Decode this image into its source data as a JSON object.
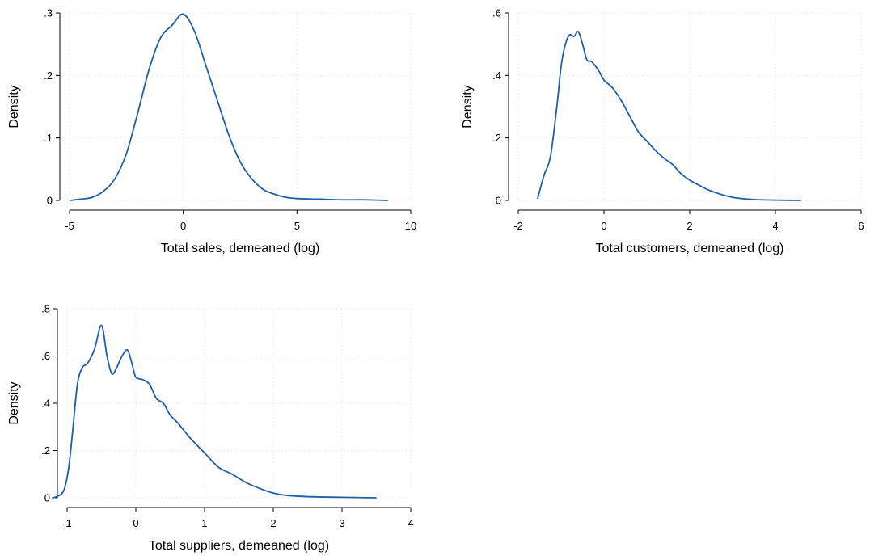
{
  "chart_data": [
    {
      "type": "line",
      "title": "",
      "xlabel": "Total sales, demeaned (log)",
      "ylabel": "Density",
      "xlim": [
        -5,
        10
      ],
      "ylim": [
        0,
        0.3
      ],
      "xticks": [
        -5,
        0,
        5,
        10
      ],
      "xtick_labels": [
        "-5",
        "0",
        "5",
        "10"
      ],
      "yticks": [
        0,
        0.1,
        0.2,
        0.3
      ],
      "ytick_labels": [
        "0",
        ".1",
        ".2",
        ".3"
      ],
      "grid": true,
      "color": "#1f5fa6",
      "series": [
        {
          "x": [
            -5,
            -4.5,
            -4,
            -3.5,
            -3,
            -2.5,
            -2,
            -1.5,
            -1,
            -0.5,
            0,
            0.5,
            1,
            1.5,
            2,
            2.5,
            3,
            3.5,
            4,
            4.5,
            5,
            6,
            7,
            8,
            9
          ],
          "y": [
            0,
            0.002,
            0.005,
            0.015,
            0.035,
            0.075,
            0.14,
            0.21,
            0.26,
            0.28,
            0.298,
            0.27,
            0.215,
            0.16,
            0.105,
            0.062,
            0.035,
            0.018,
            0.01,
            0.005,
            0.003,
            0.002,
            0.001,
            0.001,
            0
          ]
        }
      ]
    },
    {
      "type": "line",
      "title": "",
      "xlabel": "Total customers, demeaned (log)",
      "ylabel": "Density",
      "xlim": [
        -2,
        6
      ],
      "ylim": [
        0,
        0.6
      ],
      "xticks": [
        -2,
        0,
        2,
        4,
        6
      ],
      "xtick_labels": [
        "-2",
        "0",
        "2",
        "4",
        "6"
      ],
      "yticks": [
        0,
        0.2,
        0.4,
        0.6
      ],
      "ytick_labels": [
        "0",
        ".2",
        ".4",
        ".6"
      ],
      "grid": true,
      "color": "#1f5fa6",
      "series": [
        {
          "x": [
            -1.55,
            -1.4,
            -1.25,
            -1.1,
            -1.0,
            -0.9,
            -0.8,
            -0.7,
            -0.6,
            -0.5,
            -0.4,
            -0.3,
            -0.2,
            -0.1,
            0,
            0.2,
            0.4,
            0.6,
            0.8,
            1.0,
            1.2,
            1.4,
            1.6,
            1.8,
            2.0,
            2.2,
            2.5,
            3.0,
            3.5,
            4.0,
            4.6
          ],
          "y": [
            0.005,
            0.08,
            0.14,
            0.3,
            0.43,
            0.5,
            0.53,
            0.525,
            0.54,
            0.5,
            0.45,
            0.445,
            0.43,
            0.41,
            0.385,
            0.36,
            0.32,
            0.27,
            0.22,
            0.19,
            0.16,
            0.135,
            0.115,
            0.085,
            0.065,
            0.05,
            0.03,
            0.01,
            0.003,
            0.001,
            0
          ]
        }
      ]
    },
    {
      "type": "line",
      "title": "",
      "xlabel": "Total suppliers, demeaned (log)",
      "ylabel": "Density",
      "xlim": [
        -1,
        4
      ],
      "ylim": [
        0,
        0.8
      ],
      "xticks": [
        -1,
        0,
        1,
        2,
        3,
        4
      ],
      "xtick_labels": [
        "-1",
        "0",
        "1",
        "2",
        "3",
        "4"
      ],
      "yticks": [
        0,
        0.2,
        0.4,
        0.6,
        0.8
      ],
      "ytick_labels": [
        "0",
        ".2",
        ".4",
        ".6",
        ".8"
      ],
      "grid": true,
      "color": "#1f5fa6",
      "series": [
        {
          "x": [
            -1.22,
            -1.15,
            -1.05,
            -0.98,
            -0.92,
            -0.85,
            -0.78,
            -0.7,
            -0.6,
            -0.5,
            -0.42,
            -0.35,
            -0.28,
            -0.2,
            -0.12,
            -0.05,
            0,
            0.1,
            0.2,
            0.3,
            0.4,
            0.5,
            0.6,
            0.8,
            1.0,
            1.2,
            1.4,
            1.6,
            1.8,
            2.0,
            2.2,
            2.5,
            3.0,
            3.5
          ],
          "y": [
            0,
            0.005,
            0.03,
            0.12,
            0.28,
            0.48,
            0.55,
            0.57,
            0.63,
            0.73,
            0.6,
            0.525,
            0.55,
            0.6,
            0.625,
            0.56,
            0.51,
            0.5,
            0.48,
            0.42,
            0.4,
            0.35,
            0.32,
            0.25,
            0.19,
            0.13,
            0.1,
            0.065,
            0.04,
            0.02,
            0.01,
            0.005,
            0.002,
            0
          ]
        }
      ]
    }
  ]
}
